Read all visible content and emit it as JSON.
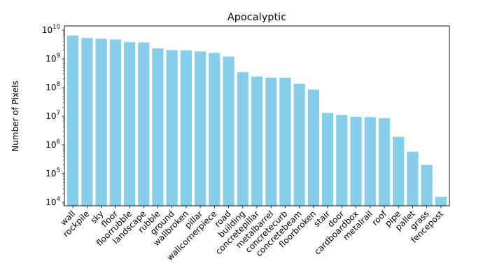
{
  "chart_data": {
    "type": "bar",
    "title": "Apocalyptic",
    "xlabel": "",
    "ylabel": "Number of Pixels",
    "yscale": "log",
    "ylim": [
      7500,
      14000000000
    ],
    "y_ticks": [
      {
        "value": 10000,
        "base": "10",
        "exp": "4"
      },
      {
        "value": 100000,
        "base": "10",
        "exp": "5"
      },
      {
        "value": 1000000,
        "base": "10",
        "exp": "6"
      },
      {
        "value": 10000000,
        "base": "10",
        "exp": "7"
      },
      {
        "value": 100000000,
        "base": "10",
        "exp": "8"
      },
      {
        "value": 1000000000,
        "base": "10",
        "exp": "9"
      },
      {
        "value": 10000000000,
        "base": "10",
        "exp": "10"
      }
    ],
    "bar_color": "#87CEEB",
    "categories": [
      "wall",
      "rockpile",
      "sky",
      "floor",
      "floorrubble",
      "landscape",
      "rubble",
      "ground",
      "wallbroken",
      "pillar",
      "wallcornerpiece",
      "road",
      "building",
      "concretepillar",
      "metalbarrel",
      "concretecurb",
      "concretebeam",
      "floorbroken",
      "stair",
      "door",
      "cardboardbox",
      "metalrail",
      "roof",
      "pipe",
      "pallet",
      "grass",
      "fencepost"
    ],
    "values": [
      6500000000,
      5300000000,
      5000000000,
      4700000000,
      3800000000,
      3700000000,
      2300000000,
      2000000000,
      1950000000,
      1800000000,
      1600000000,
      1200000000,
      340000000,
      240000000,
      220000000,
      220000000,
      135000000,
      85000000,
      13000000,
      11000000,
      9500000,
      9300000,
      8500000,
      1900000,
      580000,
      200000,
      15500
    ]
  }
}
